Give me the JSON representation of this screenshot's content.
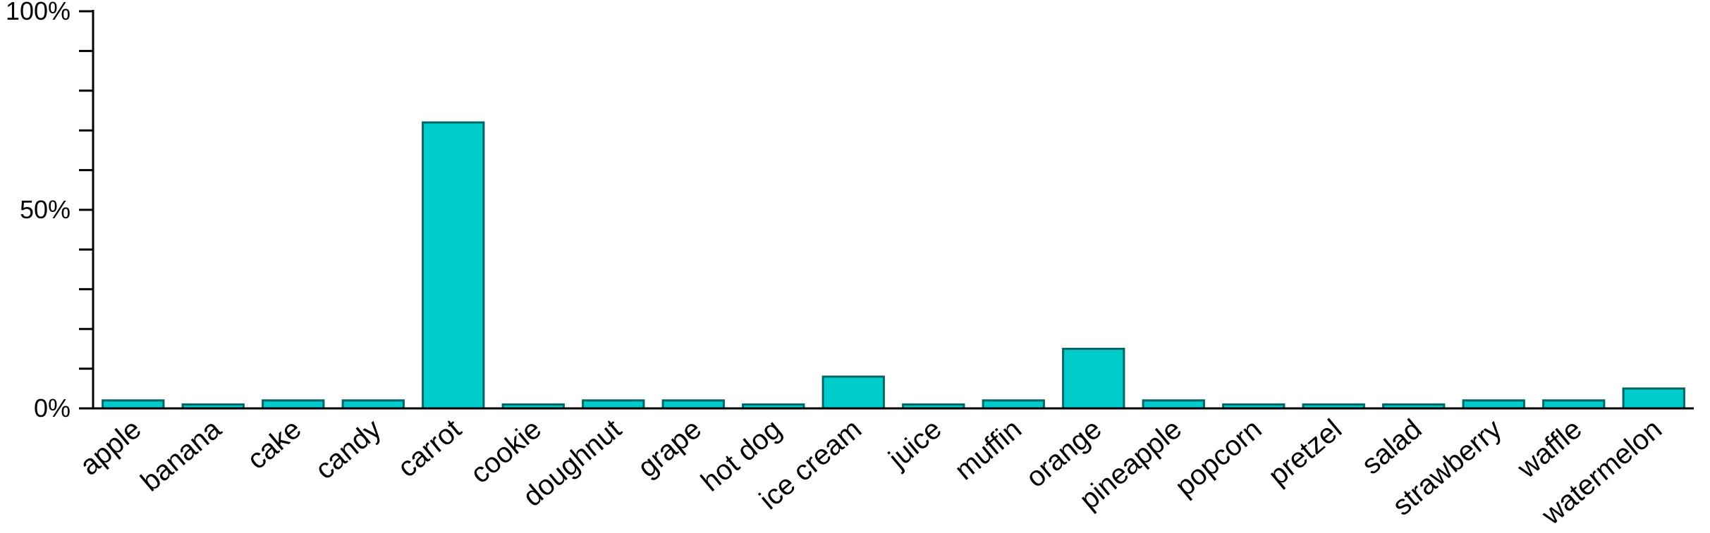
{
  "chart_data": {
    "type": "bar",
    "title": "",
    "xlabel": "",
    "ylabel": "",
    "ylim": [
      0,
      100
    ],
    "y_tick_labels": [
      {
        "value": 100,
        "label": "100%"
      },
      {
        "value": 50,
        "label": "50%"
      },
      {
        "value": 0,
        "label": "0%"
      }
    ],
    "y_minor_tick_step": 10,
    "grid": false,
    "categories": [
      "apple",
      "banana",
      "cake",
      "candy",
      "carrot",
      "cookie",
      "doughnut",
      "grape",
      "hot dog",
      "ice cream",
      "juice",
      "muffin",
      "orange",
      "pineapple",
      "popcorn",
      "pretzel",
      "salad",
      "strawberry",
      "waffle",
      "watermelon"
    ],
    "values": [
      2,
      1,
      2,
      2,
      72,
      1,
      2,
      2,
      1,
      8,
      1,
      2,
      15,
      2,
      1,
      1,
      1,
      2,
      2,
      5
    ],
    "colors": {
      "bar_fill": "#00cccc",
      "bar_stroke": "#006666",
      "axis": "#000000"
    }
  }
}
